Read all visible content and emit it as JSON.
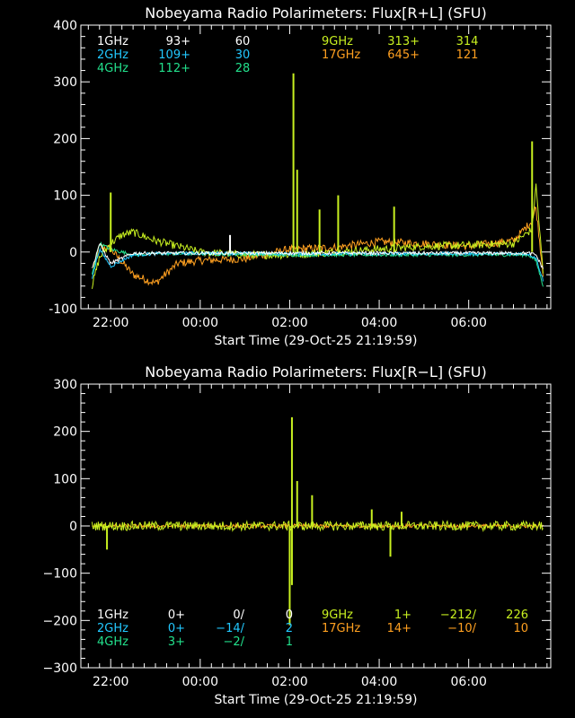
{
  "colors": {
    "1GHz": "#ffffff",
    "2GHz": "#22c8ff",
    "4GHz": "#22e08c",
    "9GHz": "#c8f020",
    "17GHz": "#ffa020",
    "axis": "#ffffff",
    "background": "#000000"
  },
  "chart_data": [
    {
      "type": "line",
      "title": "Nobeyama Radio Polarimeters: Flux[R+L] (SFU)",
      "xlabel": "Start Time (29-Oct-25 21:19:59)",
      "ylabel": "",
      "ylim": [
        -100,
        400
      ],
      "xlim": [
        "21:19:59",
        "07:50:00"
      ],
      "x_ticks": [
        "22:00",
        "00:00",
        "02:00",
        "04:00",
        "06:00"
      ],
      "y_ticks": [
        "-100",
        "0",
        "100",
        "200",
        "300",
        "400"
      ],
      "legend": [
        {
          "freq": "1GHz",
          "value": "93+",
          "extra": "60"
        },
        {
          "freq": "2GHz",
          "value": "109+",
          "extra": "30"
        },
        {
          "freq": "4GHz",
          "value": "112+",
          "extra": "28"
        },
        {
          "freq": "9GHz",
          "value": "313+",
          "extra": "314"
        },
        {
          "freq": "17GHz",
          "value": "645+",
          "extra": "121"
        }
      ],
      "series": [
        {
          "freq": "17GHz",
          "x": [
            "21:35",
            "21:45",
            "22:00",
            "22:30",
            "23:00",
            "23:30",
            "00:00",
            "01:00",
            "02:00",
            "03:00",
            "04:00",
            "05:00",
            "06:00",
            "07:00",
            "07:25",
            "07:30",
            "07:40"
          ],
          "values": [
            -40,
            10,
            5,
            -40,
            -55,
            -20,
            -15,
            -12,
            5,
            8,
            18,
            15,
            10,
            20,
            55,
            80,
            -40
          ]
        },
        {
          "freq": "9GHz",
          "x": [
            "21:35",
            "21:45",
            "22:00",
            "22:15",
            "22:30",
            "23:00",
            "23:30",
            "00:00",
            "01:00",
            "02:00",
            "03:00",
            "04:00",
            "05:00",
            "06:00",
            "07:00",
            "07:25",
            "07:30",
            "07:40"
          ],
          "values": [
            -60,
            -10,
            15,
            30,
            35,
            20,
            10,
            0,
            -5,
            -5,
            0,
            5,
            10,
            12,
            15,
            40,
            120,
            -40
          ]
        },
        {
          "freq": "4GHz",
          "x": [
            "21:35",
            "21:45",
            "22:00",
            "22:30",
            "23:00",
            "00:00",
            "02:00",
            "04:00",
            "06:00",
            "07:20",
            "07:30",
            "07:40"
          ],
          "values": [
            -40,
            15,
            5,
            -5,
            -3,
            -3,
            -5,
            -5,
            -5,
            -5,
            -15,
            -60
          ]
        },
        {
          "freq": "2GHz",
          "x": [
            "21:35",
            "21:45",
            "22:00",
            "22:30",
            "23:00",
            "00:00",
            "02:00",
            "04:00",
            "06:00",
            "07:20",
            "07:30",
            "07:40"
          ],
          "values": [
            -45,
            5,
            -25,
            -5,
            -3,
            -2,
            -3,
            -3,
            -3,
            -3,
            -10,
            -50
          ]
        },
        {
          "freq": "1GHz",
          "x": [
            "21:35",
            "21:45",
            "22:00",
            "22:30",
            "23:00",
            "00:00",
            "02:00",
            "04:00",
            "06:00",
            "07:20",
            "07:30",
            "07:40"
          ],
          "values": [
            -30,
            15,
            -20,
            -2,
            -2,
            -2,
            -2,
            -2,
            -2,
            -2,
            -5,
            -30
          ]
        }
      ],
      "spikes": [
        {
          "freq": "9GHz",
          "x": "02:05",
          "value": 315
        },
        {
          "freq": "9GHz",
          "x": "02:10",
          "value": 145
        },
        {
          "freq": "9GHz",
          "x": "03:05",
          "value": 100
        },
        {
          "freq": "9GHz",
          "x": "02:40",
          "value": 75
        },
        {
          "freq": "9GHz",
          "x": "22:00",
          "value": 105
        },
        {
          "freq": "9GHz",
          "x": "04:20",
          "value": 80
        },
        {
          "freq": "9GHz",
          "x": "07:25",
          "value": 195
        },
        {
          "freq": "1GHz",
          "x": "00:40",
          "value": 30
        }
      ]
    },
    {
      "type": "line",
      "title": "Nobeyama Radio Polarimeters: Flux[R−L] (SFU)",
      "xlabel": "Start Time (29-Oct-25 21:19:59)",
      "ylabel": "",
      "ylim": [
        -300,
        300
      ],
      "xlim": [
        "21:19:59",
        "07:50:00"
      ],
      "x_ticks": [
        "22:00",
        "00:00",
        "02:00",
        "04:00",
        "06:00"
      ],
      "y_ticks": [
        "−300",
        "−200",
        "−100",
        "0",
        "100",
        "200",
        "300"
      ],
      "legend": [
        {
          "freq": "1GHz",
          "value": "0+",
          "extra": "0/",
          "extra2": "0"
        },
        {
          "freq": "2GHz",
          "value": "0+",
          "extra": "−14/",
          "extra2": "2"
        },
        {
          "freq": "4GHz",
          "value": "3+",
          "extra": "−2/",
          "extra2": "1"
        },
        {
          "freq": "9GHz",
          "value": "1+",
          "extra": "−212/",
          "extra2": "226"
        },
        {
          "freq": "17GHz",
          "value": "14+",
          "extra": "−10/",
          "extra2": "10"
        }
      ],
      "series": [
        {
          "freq": "17GHz",
          "x": [
            "21:35",
            "07:40"
          ],
          "values": [
            0,
            0
          ]
        },
        {
          "freq": "9GHz",
          "x": [
            "21:35",
            "07:40"
          ],
          "values": [
            0,
            0
          ]
        }
      ],
      "spikes": [
        {
          "freq": "9GHz",
          "x": "02:03",
          "value": 230
        },
        {
          "freq": "9GHz",
          "x": "02:03",
          "value": -125
        },
        {
          "freq": "9GHz",
          "x": "02:00",
          "value": -210
        },
        {
          "freq": "9GHz",
          "x": "02:30",
          "value": 65
        },
        {
          "freq": "9GHz",
          "x": "02:10",
          "value": 95
        },
        {
          "freq": "9GHz",
          "x": "04:15",
          "value": -65
        },
        {
          "freq": "9GHz",
          "x": "03:50",
          "value": 35
        },
        {
          "freq": "9GHz",
          "x": "21:55",
          "value": -50
        },
        {
          "freq": "9GHz",
          "x": "04:30",
          "value": 30
        }
      ]
    }
  ]
}
